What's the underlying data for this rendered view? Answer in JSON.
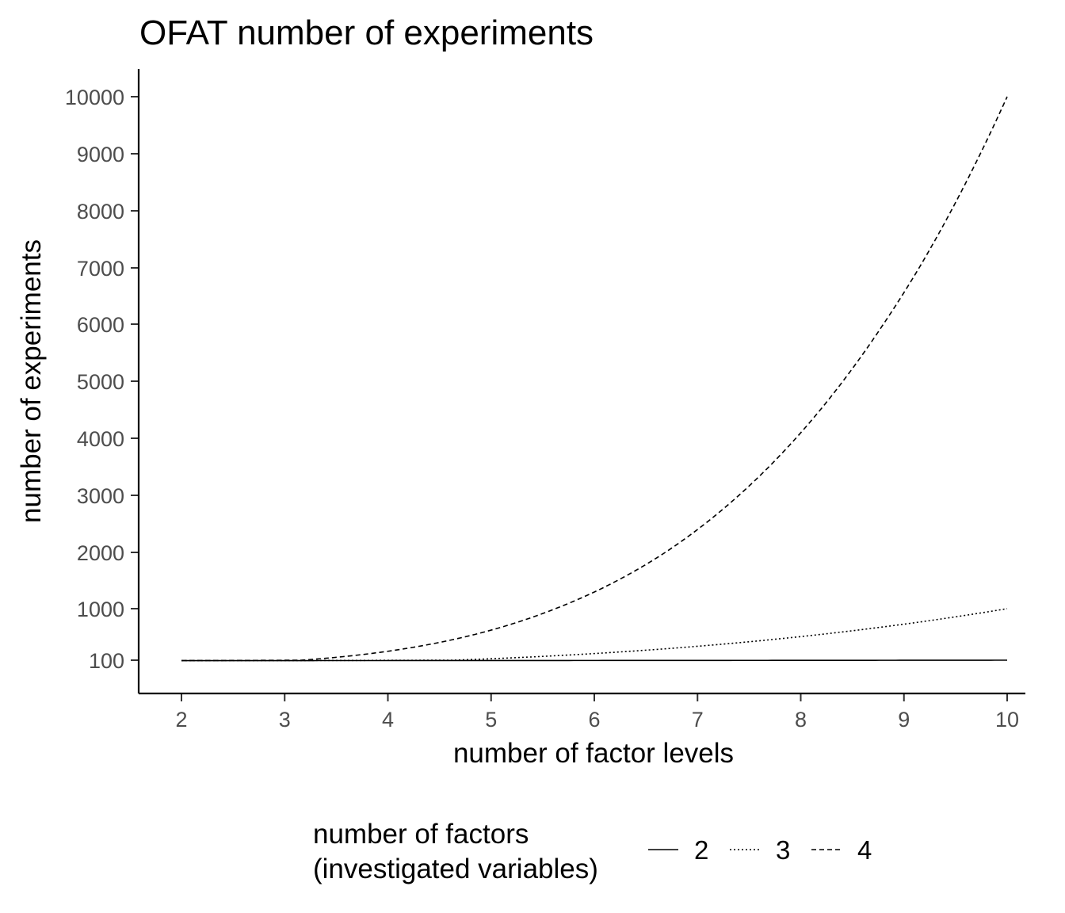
{
  "chart_data": {
    "type": "line",
    "title": "OFAT number of experiments",
    "xlabel": "number of factor levels",
    "ylabel": "number of experiments",
    "x": [
      2,
      3,
      4,
      5,
      6,
      7,
      8,
      9,
      10
    ],
    "xlim": [
      1.6,
      10.3
    ],
    "ylim": [
      -500,
      10500
    ],
    "x_ticks": [
      "2",
      "3",
      "4",
      "5",
      "6",
      "7",
      "8",
      "9",
      "10"
    ],
    "y_ticks": [
      {
        "label": "100",
        "value": 100
      },
      {
        "label": "1000",
        "value": 1000
      },
      {
        "label": "2000",
        "value": 2000
      },
      {
        "label": "3000",
        "value": 3000
      },
      {
        "label": "4000",
        "value": 4000
      },
      {
        "label": "5000",
        "value": 5000
      },
      {
        "label": "6000",
        "value": 6000
      },
      {
        "label": "7000",
        "value": 7000
      },
      {
        "label": "8000",
        "value": 8000
      },
      {
        "label": "9000",
        "value": 9000
      },
      {
        "label": "10000",
        "value": 10000
      }
    ],
    "series": [
      {
        "name": "2",
        "linetype": "solid",
        "values": [
          4,
          9,
          16,
          25,
          36,
          49,
          64,
          81,
          100
        ]
      },
      {
        "name": "3",
        "linetype": "dotted",
        "values": [
          8,
          27,
          64,
          125,
          216,
          343,
          512,
          729,
          1000
        ]
      },
      {
        "name": "4",
        "linetype": "dashed",
        "values": [
          16,
          81,
          256,
          625,
          1296,
          2401,
          4096,
          6561,
          10000
        ]
      }
    ],
    "grid": false,
    "legend": {
      "position": "bottom",
      "title_lines": [
        "number of factors",
        "(investigated variables)"
      ]
    },
    "colors": {
      "line": "#000000",
      "tick_text": "#4d4d4d",
      "background": "#ffffff"
    }
  }
}
